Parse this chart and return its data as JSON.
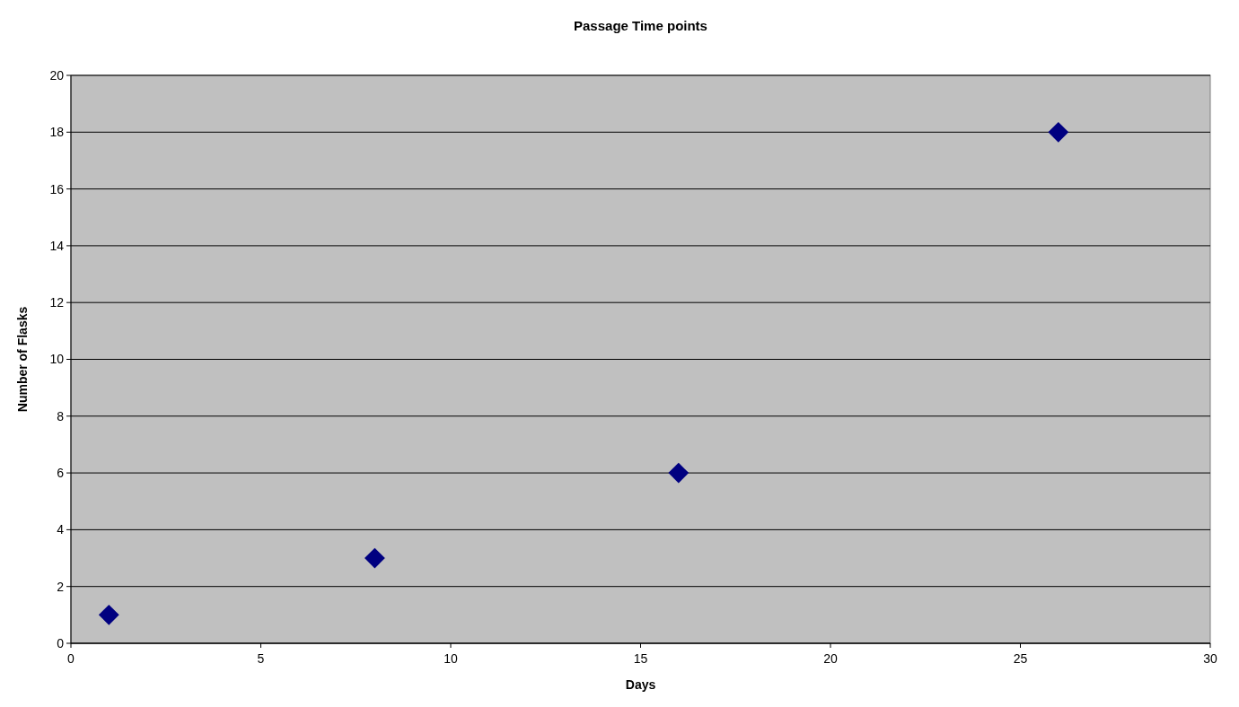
{
  "chart_data": {
    "type": "scatter",
    "title": "Passage Time points",
    "xlabel": "Days",
    "ylabel": "Number of Flasks",
    "x": [
      1,
      8,
      16,
      26
    ],
    "series": [
      {
        "color": "#000080",
        "values": [
          1,
          3,
          6,
          18
        ]
      }
    ],
    "xlim": [
      0,
      30
    ],
    "xticks": [
      0,
      5,
      10,
      15,
      20,
      25,
      30
    ],
    "ylim": [
      0,
      20
    ],
    "yticks": [
      0,
      2,
      4,
      6,
      8,
      10,
      12,
      14,
      16,
      18,
      20
    ],
    "grid": "y",
    "marker": "diamond"
  }
}
